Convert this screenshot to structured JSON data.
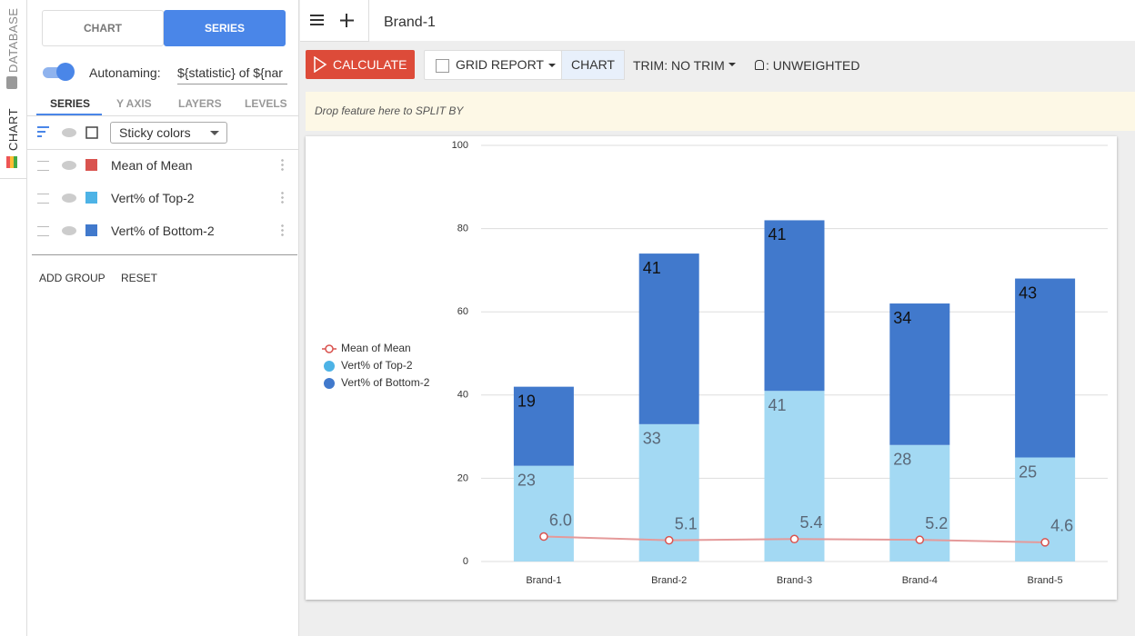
{
  "side_tabs": [
    "DATABASE",
    "CHART"
  ],
  "panel": {
    "tabs": [
      "CHART",
      "SERIES"
    ],
    "autonaming_label": "Autonaming:",
    "autonaming_value": "${statistic} of ${nar",
    "subtabs": [
      "SERIES",
      "Y AXIS",
      "LAYERS",
      "LEVELS"
    ],
    "color_mode": "Sticky colors",
    "actions": [
      "ADD GROUP",
      "RESET"
    ]
  },
  "header": {
    "title": "Brand-1"
  },
  "toolbar": {
    "calculate": "CALCULATE",
    "grid_report": "GRID REPORT",
    "chart": "CHART",
    "trim": "TRIM: NO TRIM",
    "weight": ": UNWEIGHTED"
  },
  "drop_zone": "Drop feature here to SPLIT BY",
  "chart_data": {
    "type": "bar",
    "stacked": true,
    "categories": [
      "Brand-1",
      "Brand-2",
      "Brand-3",
      "Brand-4",
      "Brand-5"
    ],
    "series": [
      {
        "name": "Mean of Mean",
        "type": "line",
        "color": "#d9534f",
        "values": [
          6.0,
          5.1,
          5.4,
          5.2,
          4.6
        ],
        "value_labels": [
          "6.0",
          "5.1",
          "5.4",
          "5.2",
          "4.6"
        ]
      },
      {
        "name": "Vert% of Top-2",
        "type": "bar",
        "color": "#4db3e6",
        "values": [
          23,
          33,
          41,
          28,
          25
        ]
      },
      {
        "name": "Vert% of Bottom-2",
        "type": "bar",
        "color": "#4179cc",
        "values": [
          19,
          41,
          41,
          34,
          43
        ]
      }
    ],
    "ylim": [
      0,
      100
    ],
    "yticks": [
      0,
      20,
      40,
      60,
      80,
      100
    ],
    "grid": true,
    "legend": "left"
  }
}
